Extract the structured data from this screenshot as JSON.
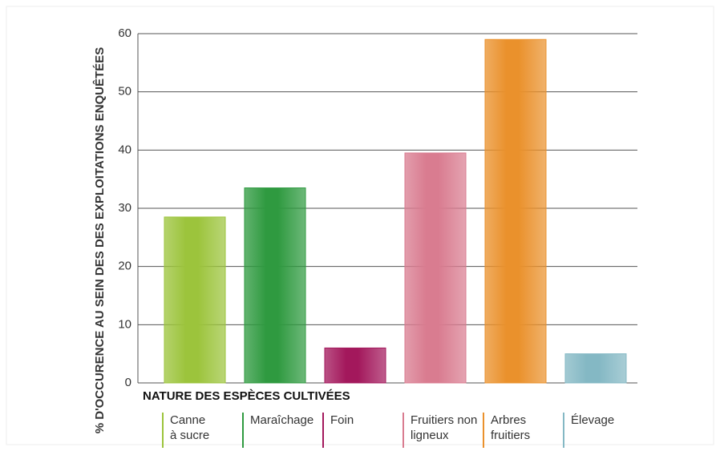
{
  "chart_data": {
    "type": "bar",
    "x_label": "NATURE DES ESPÈCES CULTIVÉES",
    "y_label": "% D'OCCURENCE AU SEIN DES DES EXPLOITATIONS ENQUÊTÉES",
    "categories": [
      "Canne à sucre",
      "Maraîchage",
      "Foin",
      "Fruitiers non ligneux",
      "Arbres fruitiers",
      "Élevage"
    ],
    "values": [
      28.5,
      33.5,
      6,
      39.5,
      59,
      5
    ],
    "colors": [
      "#9cc43c",
      "#2f9a40",
      "#a3185c",
      "#d97c90",
      "#ea912c",
      "#84b8c4"
    ],
    "ylim": [
      0,
      60
    ],
    "yticks": [
      0,
      10,
      20,
      30,
      40,
      50,
      60
    ],
    "grid": true
  }
}
